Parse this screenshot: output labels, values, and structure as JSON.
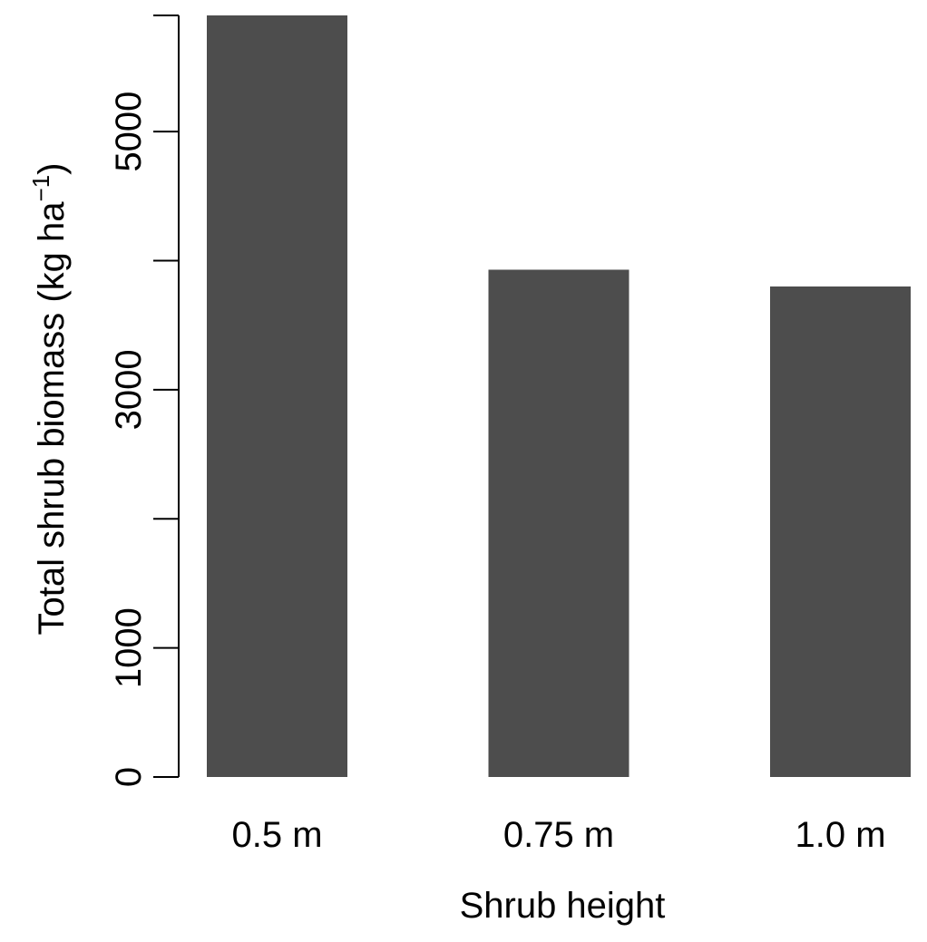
{
  "chart_data": {
    "type": "bar",
    "title": "",
    "xlabel": "Shrub height",
    "ylabel_main": "Total shrub biomass (kg ha",
    "ylabel_sup": "−1",
    "ylabel_close": ")",
    "categories": [
      "0.5 m",
      "0.75 m",
      "1.0 m"
    ],
    "values": [
      5900,
      3930,
      3800
    ],
    "ylim": [
      0,
      5900
    ],
    "yticks": [
      0,
      1000,
      2000,
      3000,
      4000,
      5000,
      5900
    ],
    "ytick_labels": [
      "0",
      "1000",
      "",
      "3000",
      "",
      "5000",
      ""
    ],
    "bar_color": "#4d4d4d",
    "grid": false,
    "legend": "none"
  }
}
